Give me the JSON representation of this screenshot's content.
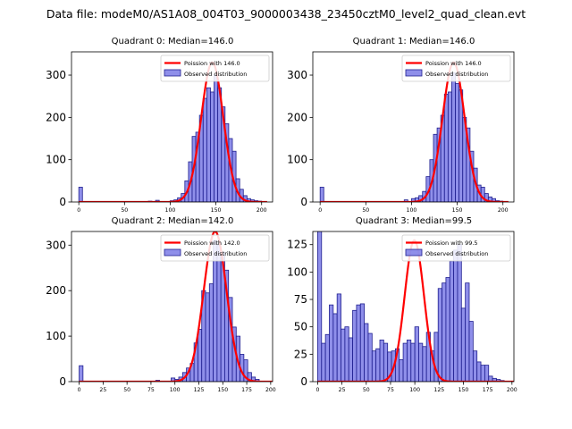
{
  "suptitle": "Data file: modeM0/AS1A08_004T03_9000003438_23450cztM0_level2_quad_clean.evt",
  "colors": {
    "hist_fill": "#7b7be6",
    "hist_edge": "#1f1f8f",
    "poisson_line": "#ff0000",
    "axes": "#000000"
  },
  "legend_labels": {
    "observed": "Observed distribution"
  },
  "chart_data": [
    {
      "type": "bar",
      "title": "Quadrant 0: Median=146.0",
      "poisson_label": "Poission with 146.0",
      "lambda": 146.0,
      "peak": 330,
      "bin_width": 4,
      "bin_starts": [
        0,
        76,
        84,
        100,
        104,
        108,
        112,
        116,
        120,
        124,
        128,
        132,
        136,
        140,
        144,
        148,
        152,
        156,
        160,
        164,
        168,
        172,
        176,
        180,
        184,
        188,
        192,
        196,
        200
      ],
      "values": [
        35,
        2,
        4,
        3,
        5,
        10,
        20,
        50,
        95,
        155,
        165,
        205,
        245,
        270,
        260,
        300,
        270,
        225,
        185,
        150,
        120,
        55,
        30,
        15,
        8,
        5,
        3,
        2,
        1
      ],
      "xlim": [
        -8,
        212
      ],
      "ylim": [
        0,
        355
      ],
      "xticks": [
        0,
        50,
        100,
        150,
        200
      ],
      "yticks": [
        0,
        100,
        200,
        300
      ],
      "xlabel": "",
      "ylabel": ""
    },
    {
      "type": "bar",
      "title": "Quadrant 1: Median=146.0",
      "poisson_label": "Poission with 146.0",
      "lambda": 146.0,
      "peak": 330,
      "bin_width": 4,
      "bin_starts": [
        0,
        92,
        100,
        104,
        108,
        112,
        116,
        120,
        124,
        128,
        132,
        136,
        140,
        144,
        148,
        152,
        156,
        160,
        164,
        168,
        172,
        176,
        180,
        184,
        188,
        192,
        196
      ],
      "values": [
        35,
        5,
        8,
        10,
        15,
        25,
        60,
        100,
        160,
        175,
        205,
        255,
        260,
        305,
        280,
        265,
        200,
        175,
        120,
        80,
        40,
        35,
        20,
        12,
        8,
        3,
        2
      ],
      "xlim": [
        -8,
        212
      ],
      "ylim": [
        0,
        355
      ],
      "xticks": [
        0,
        50,
        100,
        150,
        200
      ],
      "yticks": [
        0,
        100,
        200,
        300
      ],
      "xlabel": "",
      "ylabel": ""
    },
    {
      "type": "bar",
      "title": "Quadrant 2: Median=142.0",
      "poisson_label": "Poission with 142.0",
      "lambda": 142.0,
      "peak": 330,
      "bin_width": 4,
      "bin_starts": [
        0,
        80,
        96,
        100,
        104,
        108,
        112,
        116,
        120,
        124,
        128,
        132,
        136,
        140,
        144,
        148,
        152,
        156,
        160,
        164,
        168,
        172,
        176,
        180,
        184
      ],
      "values": [
        35,
        3,
        8,
        5,
        10,
        20,
        30,
        40,
        85,
        115,
        200,
        195,
        215,
        310,
        300,
        285,
        245,
        185,
        120,
        100,
        60,
        48,
        20,
        10,
        5
      ],
      "xlim": [
        -8,
        202
      ],
      "ylim": [
        0,
        330
      ],
      "xticks": [
        0,
        25,
        50,
        75,
        100,
        125,
        150,
        175,
        200
      ],
      "yticks": [
        0,
        100,
        200,
        300
      ],
      "xlabel": "",
      "ylabel": ""
    },
    {
      "type": "bar",
      "title": "Quadrant 3: Median=99.5",
      "poisson_label": "Poission with 99.5",
      "lambda": 99.5,
      "peak": 129,
      "bin_width": 4,
      "bin_starts": [
        0,
        4,
        8,
        12,
        16,
        20,
        24,
        28,
        32,
        36,
        40,
        44,
        48,
        52,
        56,
        60,
        64,
        68,
        72,
        76,
        80,
        84,
        88,
        92,
        96,
        100,
        104,
        108,
        112,
        116,
        120,
        124,
        128,
        132,
        136,
        140,
        144,
        148,
        152,
        156,
        160,
        164,
        168,
        172,
        176,
        180,
        184,
        188
      ],
      "values": [
        140,
        35,
        43,
        70,
        62,
        80,
        48,
        50,
        40,
        65,
        70,
        71,
        53,
        44,
        28,
        30,
        38,
        35,
        27,
        28,
        30,
        20,
        35,
        38,
        35,
        50,
        35,
        32,
        45,
        28,
        45,
        85,
        90,
        95,
        110,
        120,
        125,
        67,
        90,
        55,
        28,
        18,
        15,
        15,
        5,
        3,
        2,
        1
      ],
      "xlim": [
        -5,
        202
      ],
      "ylim": [
        0,
        137
      ],
      "xticks": [
        0,
        25,
        50,
        75,
        100,
        125,
        150,
        175,
        200
      ],
      "yticks": [
        0,
        25,
        50,
        75,
        100,
        125
      ],
      "xlabel": "",
      "ylabel": ""
    }
  ]
}
